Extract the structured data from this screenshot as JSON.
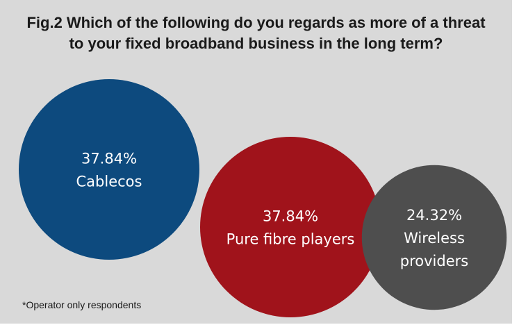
{
  "chart_data": {
    "type": "bubble",
    "title": "Fig.2 Which of the following do you regards as more of a threat\nto your fixed broadband business in the long term?",
    "series": [
      {
        "name": "Cablecos",
        "value": 37.84,
        "value_label": "37.84%",
        "label_lines": [
          "Cablecos"
        ],
        "color": "#0d4a7e"
      },
      {
        "name": "Pure fibre players",
        "value": 37.84,
        "value_label": "37.84%",
        "label_lines": [
          "Pure fibre players"
        ],
        "color": "#a0131b"
      },
      {
        "name": "Wireless providers",
        "value": 24.32,
        "value_label": "24.32%",
        "label_lines": [
          "Wireless",
          "providers"
        ],
        "color": "#4e4e4e"
      }
    ],
    "unit": "%"
  },
  "footnote": "*Operator only respondents",
  "background_color": "#d9d9d9"
}
